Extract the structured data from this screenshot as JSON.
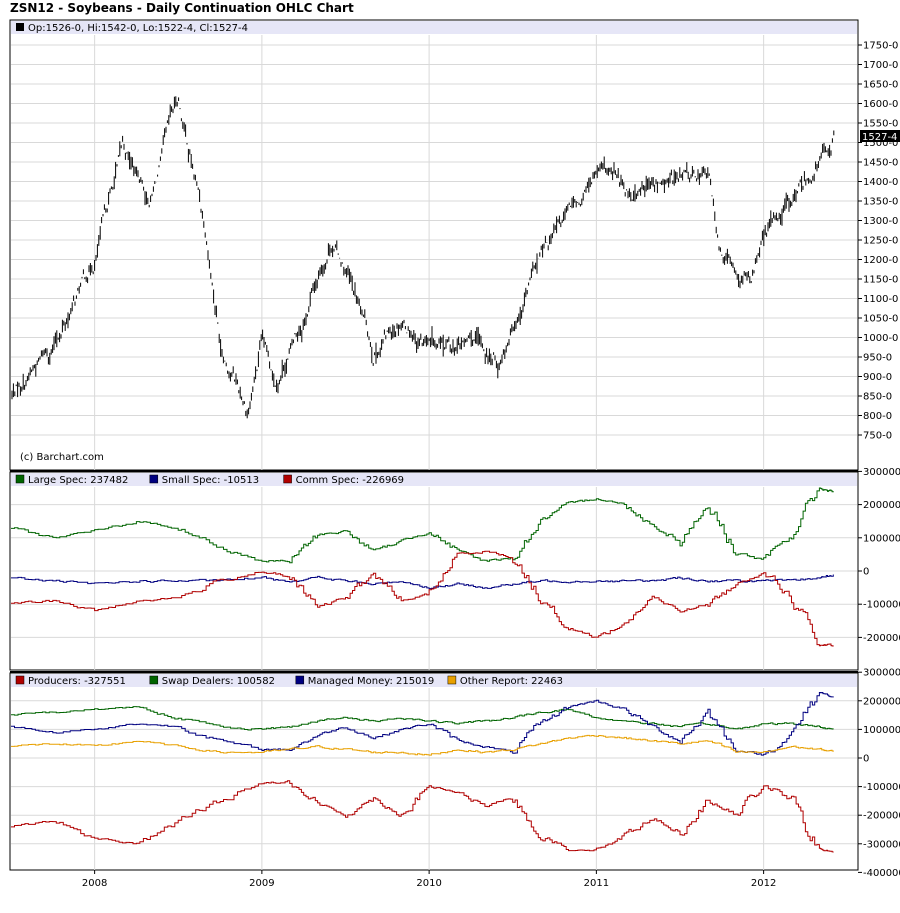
{
  "title": "ZSN12 - Soybeans - Daily Continuation OHLC Chart",
  "colors": {
    "legend_bg": "#e6e6f7",
    "grid": "#d9d9d9",
    "price": "#000000",
    "green": "#006400",
    "navy": "#000080",
    "red": "#b00000",
    "orange": "#e8a000",
    "marker_bg": "#000000",
    "marker_text": "#ffffff"
  },
  "x_axis": {
    "labels": [
      "2008",
      "2009",
      "2010",
      "2011",
      "2012"
    ]
  },
  "panel1": {
    "legend": "Op:1526-0, Hi:1542-0, Lo:1522-4, Cl:1527-4",
    "legend_icon": "black-square-icon",
    "credit": "(c) Barchart.com",
    "last_price_label": "1527-4",
    "y_ticks": [
      "750-0",
      "800-0",
      "850-0",
      "900-0",
      "950-0",
      "1000-0",
      "1050-0",
      "1100-0",
      "1150-0",
      "1200-0",
      "1250-0",
      "1300-0",
      "1350-0",
      "1400-0",
      "1450-0",
      "1500-0",
      "1550-0",
      "1600-0",
      "1650-0",
      "1700-0",
      "1750-0"
    ]
  },
  "panel2": {
    "legend": [
      {
        "label": "Large Spec: 237482",
        "color": "#006400"
      },
      {
        "label": "Small Spec: -10513",
        "color": "#000080"
      },
      {
        "label": "Comm Spec: -226969",
        "color": "#b00000"
      }
    ],
    "y_ticks": [
      "300000",
      "200000",
      "100000",
      "0",
      "-100000",
      "-200000"
    ]
  },
  "panel3": {
    "legend": [
      {
        "label": "Producers: -327551",
        "color": "#b00000"
      },
      {
        "label": "Swap Dealers: 100582",
        "color": "#006400"
      },
      {
        "label": "Managed Money: 215019",
        "color": "#000080"
      },
      {
        "label": "Other Report: 22463",
        "color": "#e8a000"
      }
    ],
    "y_ticks": [
      "300000",
      "200000",
      "100000",
      "0",
      "-100000",
      "-200000",
      "-300000",
      "-400000"
    ]
  },
  "chart_data": [
    {
      "type": "line",
      "title": "ZSN12 - Soybeans - Daily Continuation OHLC Chart",
      "xlabel": "",
      "ylabel": "",
      "ylim": [
        725,
        1775
      ],
      "x": [
        "2007-07",
        "2007-10",
        "2008-01",
        "2008-03",
        "2008-05",
        "2008-07",
        "2008-09",
        "2008-10",
        "2008-12",
        "2009-01",
        "2009-02",
        "2009-04",
        "2009-06",
        "2009-07",
        "2009-09",
        "2009-11",
        "2010-01",
        "2010-02",
        "2010-04",
        "2010-06",
        "2010-07",
        "2010-09",
        "2010-11",
        "2011-01",
        "2011-03",
        "2011-05",
        "2011-07",
        "2011-09",
        "2011-10",
        "2011-12",
        "2012-01",
        "2012-03",
        "2012-05",
        "2012-06"
      ],
      "series": [
        {
          "name": "Close",
          "values": [
            850,
            980,
            1200,
            1480,
            1350,
            1600,
            1280,
            1000,
            820,
            980,
            890,
            1050,
            1260,
            1180,
            960,
            1060,
            980,
            960,
            990,
            930,
            1050,
            1200,
            1300,
            1420,
            1380,
            1380,
            1400,
            1420,
            1200,
            1150,
            1250,
            1360,
            1450,
            1527
          ]
        }
      ]
    },
    {
      "type": "line",
      "title": "",
      "ylim": [
        -300000,
        300000
      ],
      "x": [
        "2007-07",
        "2007-10",
        "2008-01",
        "2008-04",
        "2008-07",
        "2008-10",
        "2009-01",
        "2009-03",
        "2009-05",
        "2009-07",
        "2009-09",
        "2009-11",
        "2010-01",
        "2010-03",
        "2010-05",
        "2010-07",
        "2010-09",
        "2010-11",
        "2011-01",
        "2011-03",
        "2011-05",
        "2011-07",
        "2011-09",
        "2011-11",
        "2012-01",
        "2012-03",
        "2012-05",
        "2012-06"
      ],
      "series": [
        {
          "name": "Large Spec",
          "values": [
            130000,
            100000,
            120000,
            150000,
            130000,
            70000,
            30000,
            30000,
            110000,
            120000,
            60000,
            90000,
            120000,
            60000,
            30000,
            40000,
            150000,
            200000,
            220000,
            200000,
            140000,
            90000,
            200000,
            60000,
            30000,
            110000,
            250000,
            237482
          ]
        },
        {
          "name": "Small Spec",
          "values": [
            -20000,
            -30000,
            -40000,
            -30000,
            -30000,
            -30000,
            -20000,
            -30000,
            -20000,
            -30000,
            -40000,
            -30000,
            -50000,
            -40000,
            -50000,
            -40000,
            -30000,
            -30000,
            -30000,
            -30000,
            -30000,
            -20000,
            -30000,
            -30000,
            -30000,
            -30000,
            -20000,
            -10513
          ]
        },
        {
          "name": "Comm Spec",
          "values": [
            -100000,
            -90000,
            -120000,
            -90000,
            -80000,
            -30000,
            0,
            -20000,
            -110000,
            -80000,
            -10000,
            -90000,
            -70000,
            50000,
            60000,
            40000,
            -80000,
            -170000,
            -200000,
            -160000,
            -80000,
            -120000,
            -100000,
            -40000,
            0,
            -80000,
            -220000,
            -226969
          ]
        }
      ]
    },
    {
      "type": "line",
      "title": "",
      "ylim": [
        -400000,
        300000
      ],
      "x": [
        "2007-07",
        "2007-10",
        "2008-01",
        "2008-04",
        "2008-07",
        "2008-10",
        "2009-01",
        "2009-03",
        "2009-05",
        "2009-07",
        "2009-09",
        "2009-11",
        "2010-01",
        "2010-03",
        "2010-05",
        "2010-07",
        "2010-09",
        "2010-11",
        "2011-01",
        "2011-03",
        "2011-05",
        "2011-07",
        "2011-09",
        "2011-11",
        "2012-01",
        "2012-03",
        "2012-05",
        "2012-06"
      ],
      "series": [
        {
          "name": "Producers",
          "values": [
            -240000,
            -220000,
            -280000,
            -300000,
            -220000,
            -150000,
            -90000,
            -80000,
            -160000,
            -200000,
            -140000,
            -200000,
            -100000,
            -120000,
            -170000,
            -140000,
            -270000,
            -320000,
            -320000,
            -270000,
            -210000,
            -260000,
            -150000,
            -200000,
            -90000,
            -150000,
            -320000,
            -327551
          ]
        },
        {
          "name": "Swap Dealers",
          "values": [
            150000,
            160000,
            170000,
            180000,
            140000,
            110000,
            100000,
            110000,
            130000,
            140000,
            130000,
            140000,
            130000,
            120000,
            130000,
            140000,
            160000,
            170000,
            140000,
            130000,
            120000,
            110000,
            120000,
            100000,
            120000,
            120000,
            110000,
            100582
          ]
        },
        {
          "name": "Managed Money",
          "values": [
            110000,
            90000,
            100000,
            120000,
            110000,
            60000,
            30000,
            30000,
            80000,
            110000,
            70000,
            100000,
            120000,
            60000,
            40000,
            20000,
            120000,
            180000,
            200000,
            170000,
            110000,
            60000,
            160000,
            30000,
            10000,
            80000,
            230000,
            215019
          ]
        },
        {
          "name": "Other Report",
          "values": [
            40000,
            50000,
            40000,
            60000,
            40000,
            20000,
            20000,
            30000,
            40000,
            30000,
            20000,
            20000,
            10000,
            30000,
            20000,
            30000,
            50000,
            70000,
            80000,
            70000,
            60000,
            50000,
            60000,
            20000,
            20000,
            40000,
            30000,
            22463
          ]
        }
      ]
    }
  ]
}
